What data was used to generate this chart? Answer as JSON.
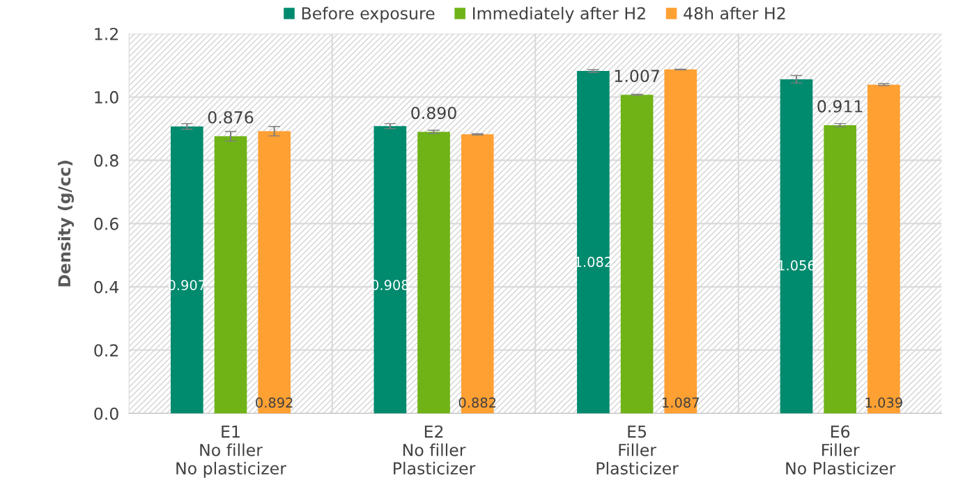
{
  "chart_data": {
    "type": "bar",
    "ylabel": "Density (g/cc)",
    "categories": [
      "E1\nNo filler\nNo plasticizer",
      "E2\nNo filler\nPlasticizer",
      "E5\nFiller\nPlasticizer",
      "E6\nFiller\nNo Plasticizer"
    ],
    "series": [
      {
        "name": "Before exposure",
        "color": "#008a6e",
        "values": [
          0.907,
          0.908,
          1.082,
          1.056
        ],
        "value_labels": [
          "0.907",
          "0.908",
          "1.082",
          "1.056"
        ],
        "errors": [
          0.009,
          0.008,
          0.004,
          0.012
        ]
      },
      {
        "name": "Immediately after H2",
        "color": "#6fb317",
        "values": [
          0.876,
          0.89,
          1.007,
          0.911
        ],
        "value_labels": [
          "0.876",
          "0.890",
          "1.007",
          "0.911"
        ],
        "errors": [
          0.015,
          0.005,
          0.002,
          0.005
        ]
      },
      {
        "name": "48h after H2",
        "color": "#ffa033",
        "values": [
          0.892,
          0.882,
          1.087,
          1.039
        ],
        "value_labels": [
          "0.892",
          "0.882",
          "1.087",
          "1.039"
        ],
        "errors": [
          0.015,
          0.002,
          0.001,
          0.003
        ]
      }
    ],
    "ylim": [
      0,
      1.2
    ],
    "yticks": [
      {
        "value": 0,
        "label": "0.0"
      },
      0.2,
      0.4,
      0.6,
      0.8,
      {
        "value": 1,
        "label": "1.0"
      },
      1.2
    ],
    "grid": true,
    "legend": "top"
  }
}
